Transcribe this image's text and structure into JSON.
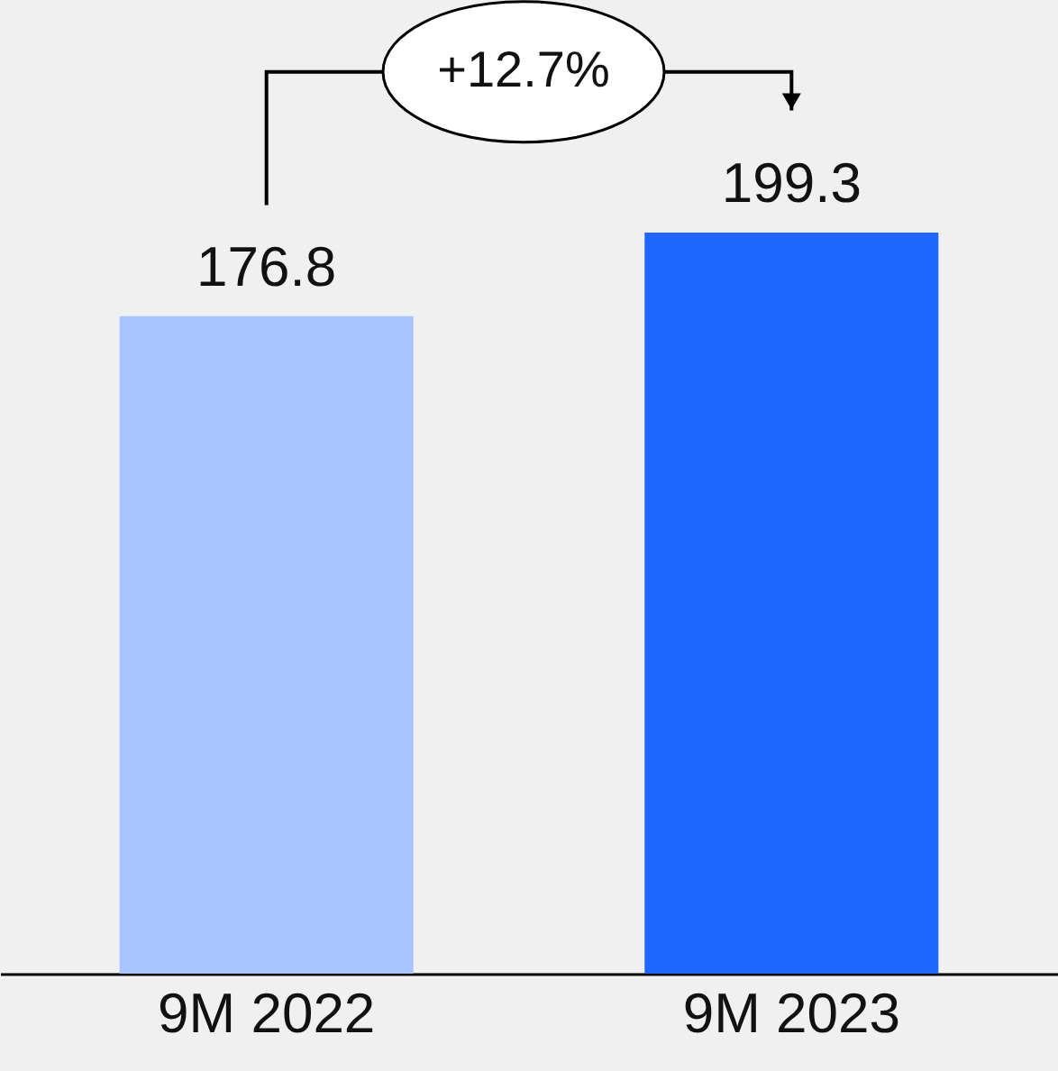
{
  "chart_data": {
    "type": "bar",
    "categories": [
      "9M 2022",
      "9M 2023"
    ],
    "values": [
      176.8,
      199.3
    ],
    "colors": [
      "#a7c4ff",
      "#1f66ff"
    ],
    "data_labels": true,
    "annotations": [
      "+12.7%"
    ],
    "grid": false
  }
}
